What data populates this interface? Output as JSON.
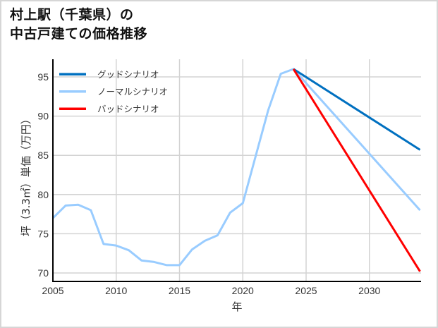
{
  "title": "村上駅（千葉県）の\n中古戸建ての価格推移",
  "chart_data": {
    "type": "line",
    "title": "村上駅（千葉県）の中古戸建ての価格推移",
    "xlabel": "年",
    "ylabel": "坪（3.3㎡）単価（万円）",
    "xlim": [
      2005,
      2034
    ],
    "ylim": [
      69,
      97.5
    ],
    "xticks": [
      2005,
      2010,
      2015,
      2020,
      2025,
      2030
    ],
    "yticks": [
      70,
      75,
      80,
      85,
      90,
      95
    ],
    "grid": true,
    "legend_position": "upper left",
    "series": [
      {
        "name": "グッドシナリオ",
        "color": "#0070c0",
        "x": [
          2024,
          2034
        ],
        "values": [
          96.0,
          85.7
        ]
      },
      {
        "name": "ノーマルシナリオ",
        "color": "#99ccff",
        "x": [
          2005,
          2006,
          2007,
          2008,
          2009,
          2010,
          2011,
          2012,
          2013,
          2014,
          2015,
          2016,
          2017,
          2018,
          2019,
          2020,
          2021,
          2022,
          2023,
          2024,
          2034
        ],
        "values": [
          77.0,
          78.6,
          78.7,
          78.0,
          73.7,
          73.5,
          72.9,
          71.6,
          71.4,
          71.0,
          71.0,
          73.0,
          74.1,
          74.8,
          77.7,
          78.9,
          84.8,
          90.7,
          95.4,
          96.0,
          78.0
        ]
      },
      {
        "name": "バッドシナリオ",
        "color": "#ff0000",
        "x": [
          2024,
          2034
        ],
        "values": [
          96.0,
          70.2
        ]
      }
    ]
  },
  "legend": {
    "items": [
      {
        "label": "グッドシナリオ",
        "color": "#0070c0"
      },
      {
        "label": "ノーマルシナリオ",
        "color": "#99ccff"
      },
      {
        "label": "バッドシナリオ",
        "color": "#ff0000"
      }
    ]
  },
  "axes": {
    "x_label": "年",
    "y_label": "坪（3.3㎡）単価（万円）",
    "x_ticks": [
      "2005",
      "2010",
      "2015",
      "2020",
      "2025",
      "2030"
    ],
    "y_ticks": [
      "95",
      "90",
      "85",
      "80",
      "75",
      "70"
    ]
  }
}
